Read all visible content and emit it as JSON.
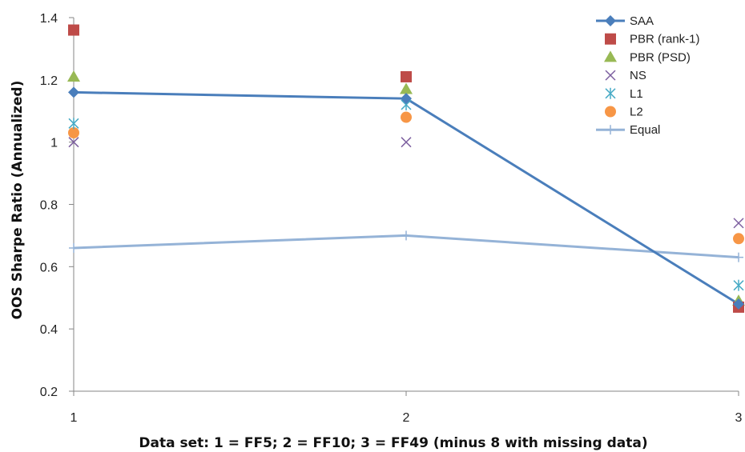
{
  "chart_data": {
    "type": "line",
    "title": "",
    "xlabel": "Data set: 1 = FF5; 2 = FF10; 3 = FF49 (minus 8 with missing data)",
    "ylabel": "OOS  Sharpe Ratio (Annualized)",
    "x": [
      1,
      2,
      3
    ],
    "x_ticks": [
      "1",
      "2",
      "3"
    ],
    "xlim": [
      1,
      3
    ],
    "ylim": [
      0.2,
      1.4
    ],
    "y_ticks": [
      "0.2",
      "0.4",
      "0.6",
      "0.8",
      "1",
      "1.2",
      "1.4"
    ],
    "grid": false,
    "legend_position": "top-right",
    "series": [
      {
        "name": "SAA",
        "values": [
          1.16,
          1.14,
          0.48
        ],
        "color": "#4a7ebb",
        "marker": "diamond",
        "line": true
      },
      {
        "name": "PBR (rank-1)",
        "values": [
          1.36,
          1.21,
          0.47
        ],
        "color": "#be4b48",
        "marker": "square",
        "line": false
      },
      {
        "name": "PBR (PSD)",
        "values": [
          1.21,
          1.17,
          0.49
        ],
        "color": "#98b954",
        "marker": "triangle",
        "line": false
      },
      {
        "name": "NS",
        "values": [
          1.0,
          1.0,
          0.74
        ],
        "color": "#7d60a0",
        "marker": "x",
        "line": false
      },
      {
        "name": "L1",
        "values": [
          1.06,
          1.12,
          0.54
        ],
        "color": "#46aac5",
        "marker": "star",
        "line": false
      },
      {
        "name": "L2",
        "values": [
          1.03,
          1.08,
          0.69
        ],
        "color": "#f79646",
        "marker": "circle",
        "line": false
      },
      {
        "name": "Equal",
        "values": [
          0.66,
          0.7,
          0.63
        ],
        "color": "#95b3d7",
        "marker": "plus",
        "line": true
      }
    ]
  }
}
